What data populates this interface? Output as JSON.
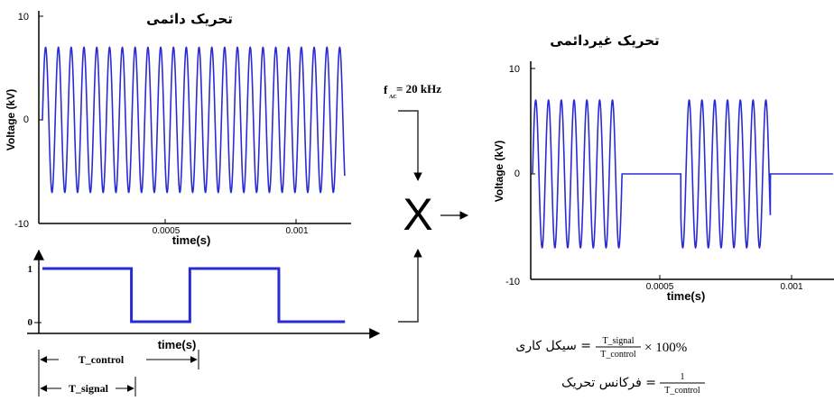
{
  "left_plot": {
    "title": "تحریک دائمی",
    "ylabel": "Voltage (kV)",
    "xlabel": "time(s)",
    "yticks": [
      "10",
      "0",
      "-10"
    ],
    "xticks": [
      "0.0005",
      "0.001"
    ]
  },
  "right_plot": {
    "title": "تحریک غیردائمی",
    "ylabel": "Voltage (kV)",
    "xlabel": "time(s)",
    "yticks": [
      "10",
      "0",
      "-10"
    ],
    "xticks": [
      "0.0005",
      "0.001"
    ]
  },
  "pulse_plot": {
    "yticks": [
      "1",
      "0"
    ],
    "xlabel": "time(s)",
    "t_control_label": "T_control",
    "t_signal_label": "T_signal"
  },
  "freq_label": {
    "main": "f",
    "sub": "AC",
    "value": "= 20 kHz"
  },
  "multiply_symbol": "X",
  "formulas": {
    "duty_label": "سیکل کاری =",
    "duty_num": "T_signal",
    "duty_den": "T_control",
    "duty_suffix": "× 100%",
    "freq_label": "فرکانس تحریک =",
    "freq_num": "1",
    "freq_den": "T_control"
  },
  "colors": {
    "signal": "#2b2bd6",
    "axis": "#000000"
  },
  "chart_data": [
    {
      "type": "line",
      "title": "تحریک دائمی",
      "xlabel": "time(s)",
      "ylabel": "Voltage (kV)",
      "series": [
        {
          "name": "",
          "frequency_kHz": 20,
          "amplitude_kV": 7,
          "x_range": [
            0,
            0.0012
          ]
        }
      ],
      "xlim": [
        0,
        0.0012
      ],
      "ylim": [
        -10,
        10
      ]
    },
    {
      "type": "line",
      "xlabel": "time(s)",
      "series": [
        {
          "name": "",
          "high_level": 1,
          "low_level": 0,
          "on_intervals": [
            [
              0,
              0.00035
            ],
            [
              0.00058,
              0.00093
            ]
          ]
        }
      ],
      "ylim": [
        0,
        1
      ]
    },
    {
      "type": "line",
      "title": "تحریک غیردائمی",
      "xlabel": "time(s)",
      "ylabel": "Voltage (kV)",
      "series": [
        {
          "name": "",
          "frequency_kHz": 20,
          "amplitude_kV": 7,
          "on_intervals": [
            [
              0,
              0.00035
            ],
            [
              0.00058,
              0.00093
            ]
          ]
        }
      ],
      "xlim": [
        0,
        0.0012
      ],
      "ylim": [
        -10,
        10
      ]
    }
  ]
}
